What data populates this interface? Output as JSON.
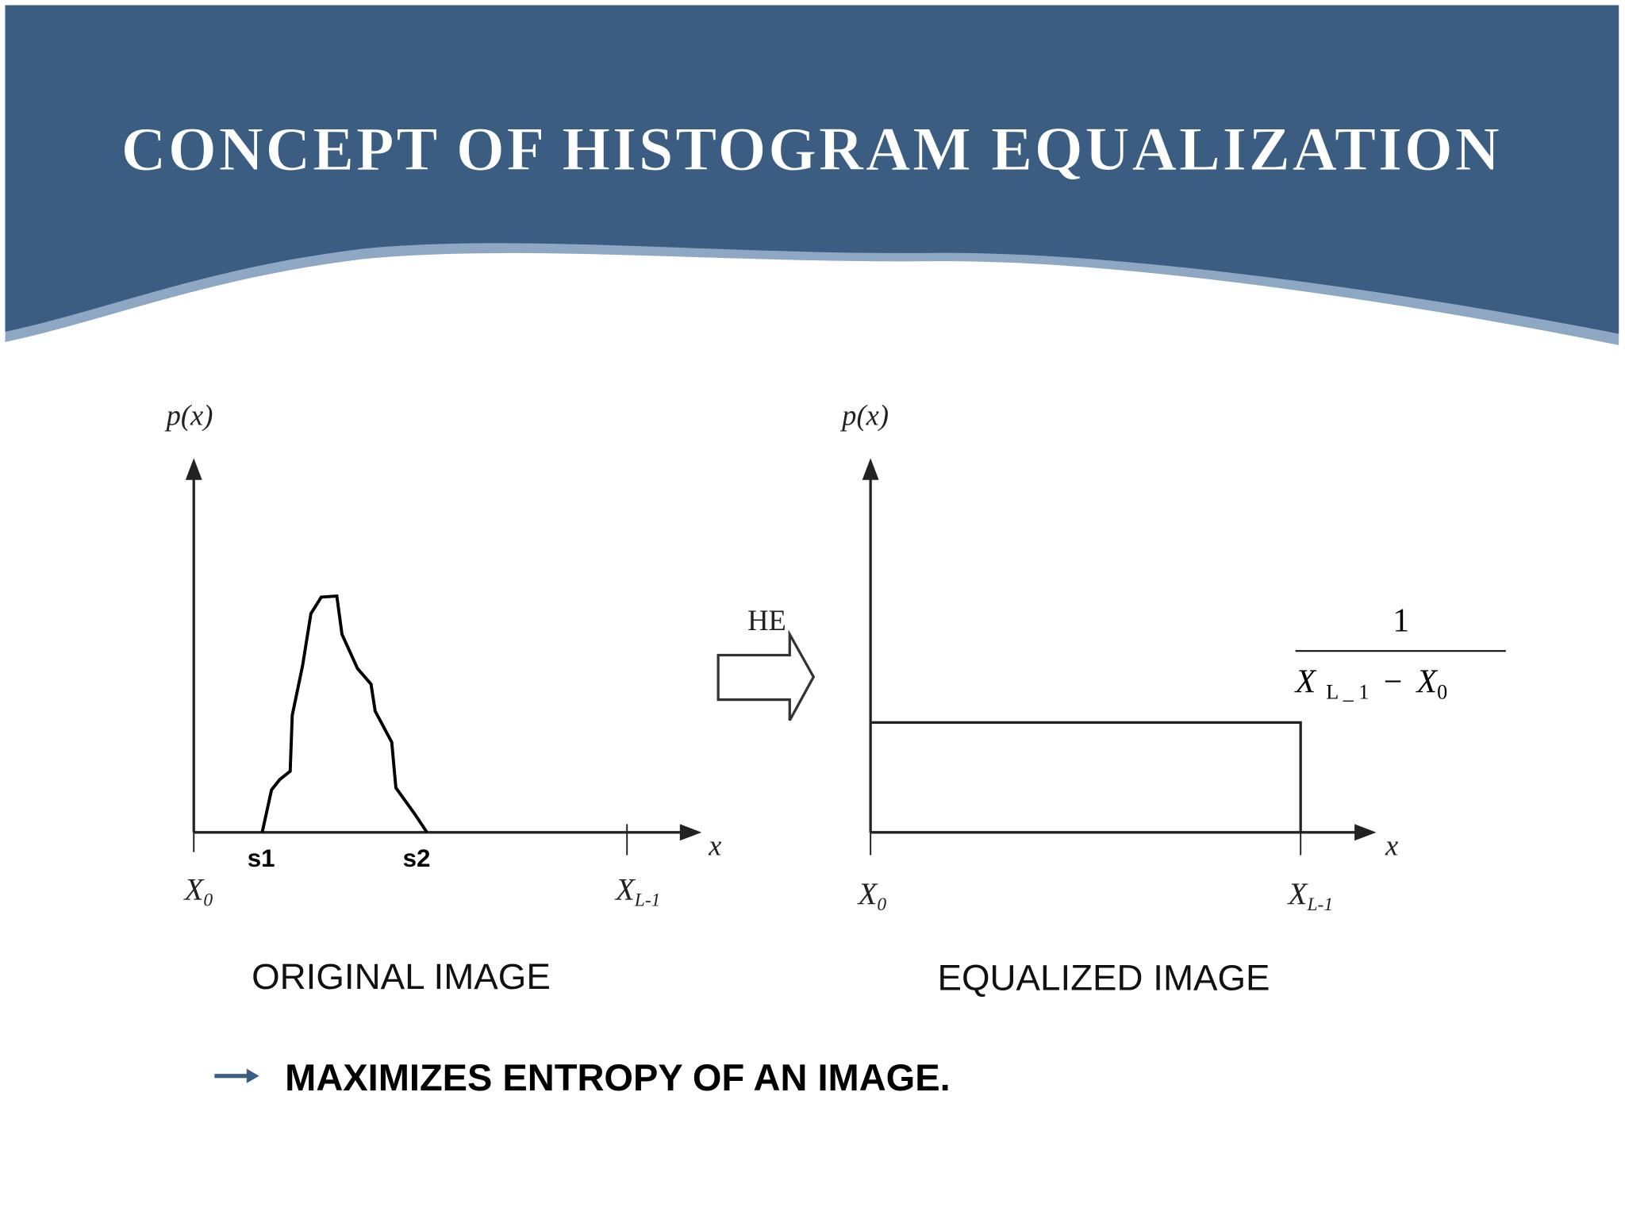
{
  "header": {
    "title": "CONCEPT OF HISTOGRAM EQUALIZATION"
  },
  "original": {
    "y_label": "p(x)",
    "x_label": "x",
    "s1": "s1",
    "s2": "s2",
    "x_start": {
      "main": "X",
      "sub": "0"
    },
    "x_end": {
      "main": "X",
      "sub": "L-1"
    },
    "caption": "ORIGINAL IMAGE"
  },
  "transform": {
    "label": "HE"
  },
  "equalized": {
    "y_label": "p(x)",
    "x_label": "x",
    "x_start": {
      "main": "X",
      "sub": "0"
    },
    "x_end": {
      "main": "X",
      "sub": "L-1"
    },
    "level": {
      "numerator": "1",
      "denominator": {
        "term1": {
          "main": "X",
          "sub": "L _ 1"
        },
        "operator": "−",
        "term2": {
          "main": "X",
          "sub": "0"
        }
      }
    },
    "caption": "EQUALIZED IMAGE"
  },
  "bullet": {
    "text": "MAXIMIZES ENTROPY OF AN IMAGE."
  }
}
